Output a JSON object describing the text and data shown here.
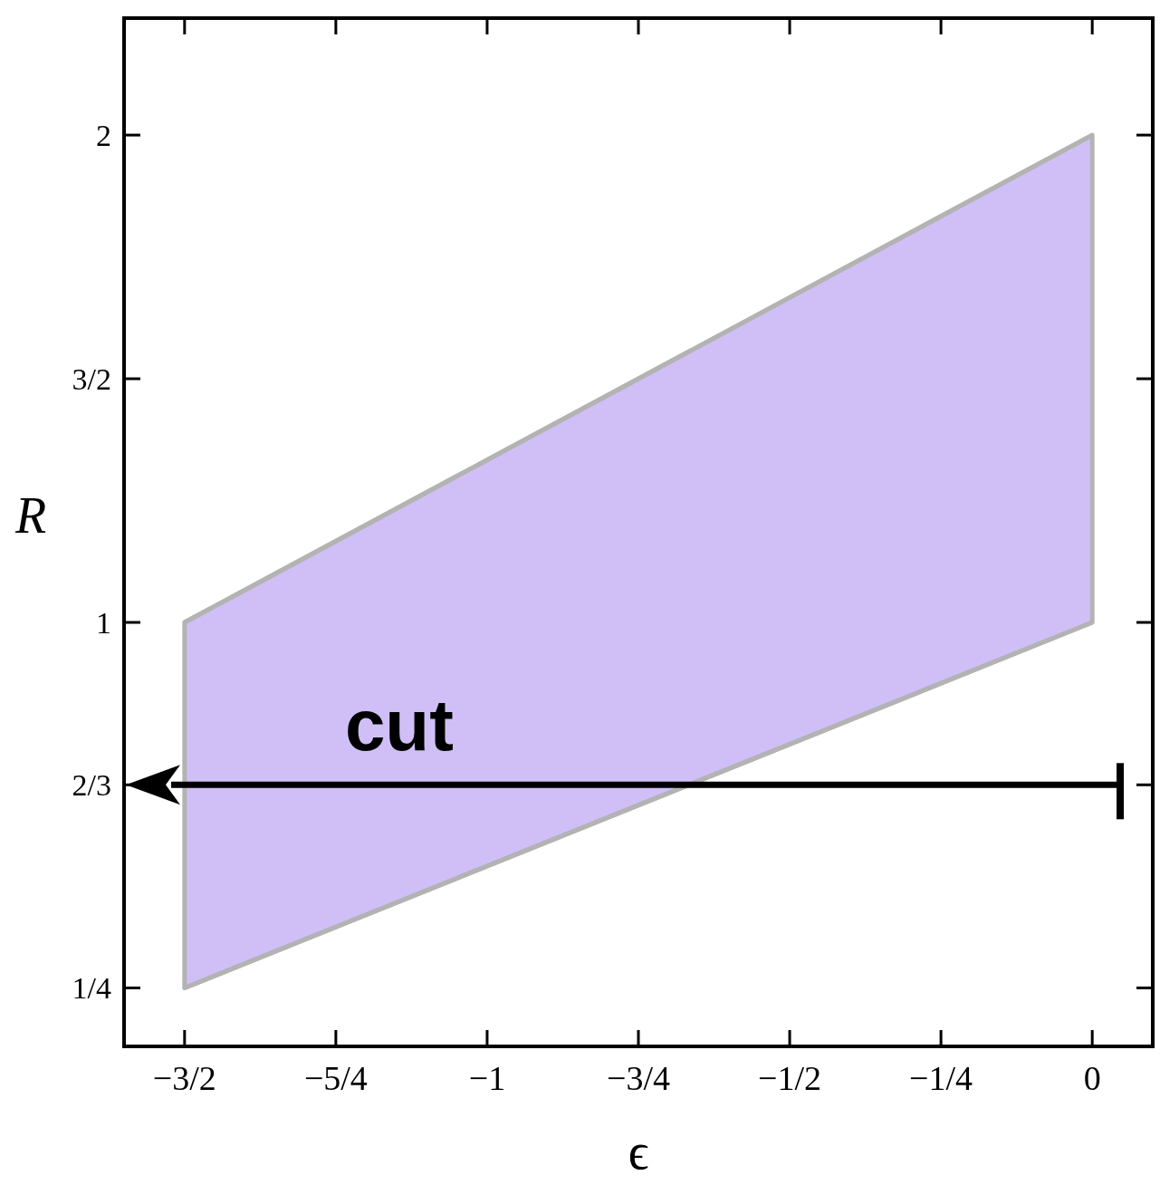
{
  "chart_data": {
    "type": "line",
    "xlabel": "ϵ",
    "ylabel": "R",
    "x": [
      -1.5,
      0
    ],
    "xlim": [
      -1.6,
      0.1
    ],
    "ylim": [
      0.13,
      2.24
    ],
    "xticks": [
      {
        "value": -1.5,
        "label": "−3/2"
      },
      {
        "value": -1.25,
        "label": "−5/4"
      },
      {
        "value": -1,
        "label": "−1"
      },
      {
        "value": -0.75,
        "label": "−3/4"
      },
      {
        "value": -0.5,
        "label": "−1/2"
      },
      {
        "value": -0.25,
        "label": "−1/4"
      },
      0
    ],
    "yticks": [
      {
        "value": 0.25,
        "label": "1/4"
      },
      {
        "value": 0.6667,
        "label": "2/3"
      },
      1,
      {
        "value": 1.5,
        "label": "3/2"
      },
      2
    ],
    "series": [
      {
        "color": "#b3b3b3",
        "values": [
          1,
          2
        ],
        "lower": [
          0.25,
          1
        ],
        "upper": [
          1,
          2
        ]
      },
      {
        "color": "#b3b3b3",
        "values": [
          0.25,
          1
        ]
      }
    ],
    "ref_lines": [
      {
        "axis": "y",
        "value": 0.6667,
        "label": "cut",
        "color": "#000000",
        "line_style": "solid"
      }
    ],
    "grid": false
  }
}
